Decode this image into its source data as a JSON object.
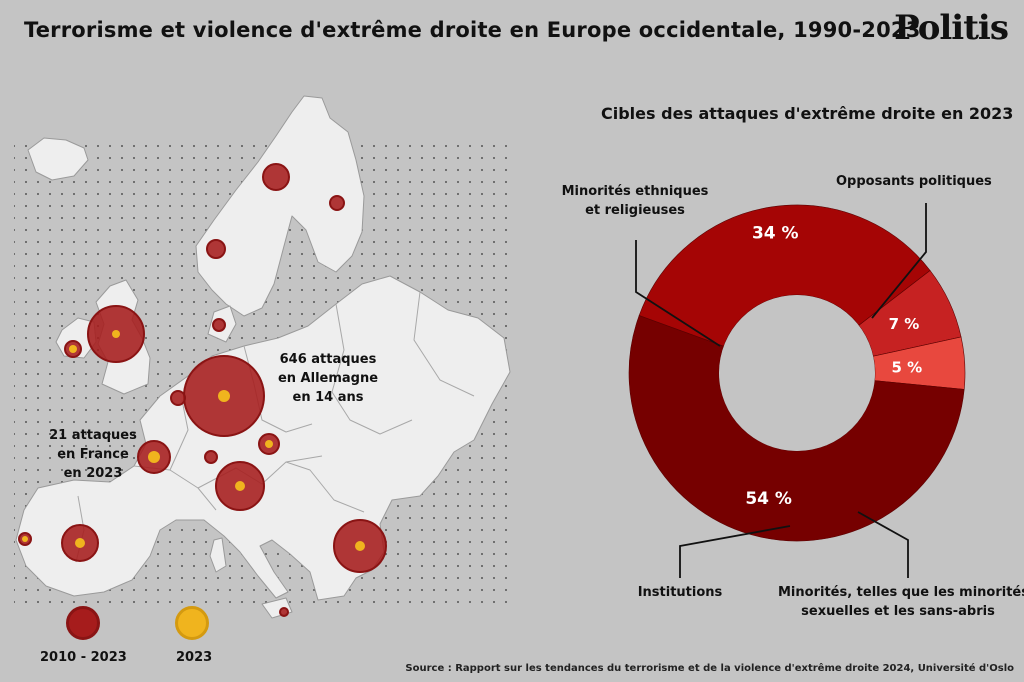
{
  "header": {
    "title": "Terrorisme et violence d'extrême droite en Europe occidentale, 1990-2023",
    "brand": "Politis"
  },
  "map": {
    "note_germany": [
      "646 attaques",
      "en Allemagne",
      "en 14 ans"
    ],
    "note_france": [
      "21 attaques",
      "en France",
      "en 2023"
    ],
    "legend": {
      "series_2010_2023": {
        "label": "2010 - 2023",
        "color": "#a61c1c"
      },
      "series_2023": {
        "label": "2023",
        "color": "#f0b41e"
      }
    }
  },
  "chart_data": {
    "type": "pie",
    "title": "Cibles des attaques d'extrême droite en 2023",
    "donut": true,
    "slices": [
      {
        "label": "Opposants politiques",
        "value": 34,
        "display": "34 %",
        "color": "#a50505"
      },
      {
        "label": "Minorités, telles que les minorités sexuelles et les sans-abris",
        "value": 7,
        "display": "7 %",
        "color": "#c62222"
      },
      {
        "label": "Institutions",
        "value": 5,
        "display": "5 %",
        "color": "#e8483e"
      },
      {
        "label": "Minorités ethniques et religieuses",
        "value": 54,
        "display": "54 %",
        "color": "#760000"
      }
    ],
    "label_lines": {
      "opposants": [
        "Opposants politiques"
      ],
      "minorites_ethniques": [
        "Minorités ethniques",
        "et religieuses"
      ],
      "institutions": [
        "Institutions"
      ],
      "minorites_sexuelles": [
        "Minorités, telles que les minorités",
        "sexuelles et les sans-abris"
      ]
    }
  },
  "footer": {
    "source": "Source : Rapport sur les tendances du terrorisme et de la violence d'extrême droite 2024, Université d'Oslo"
  }
}
